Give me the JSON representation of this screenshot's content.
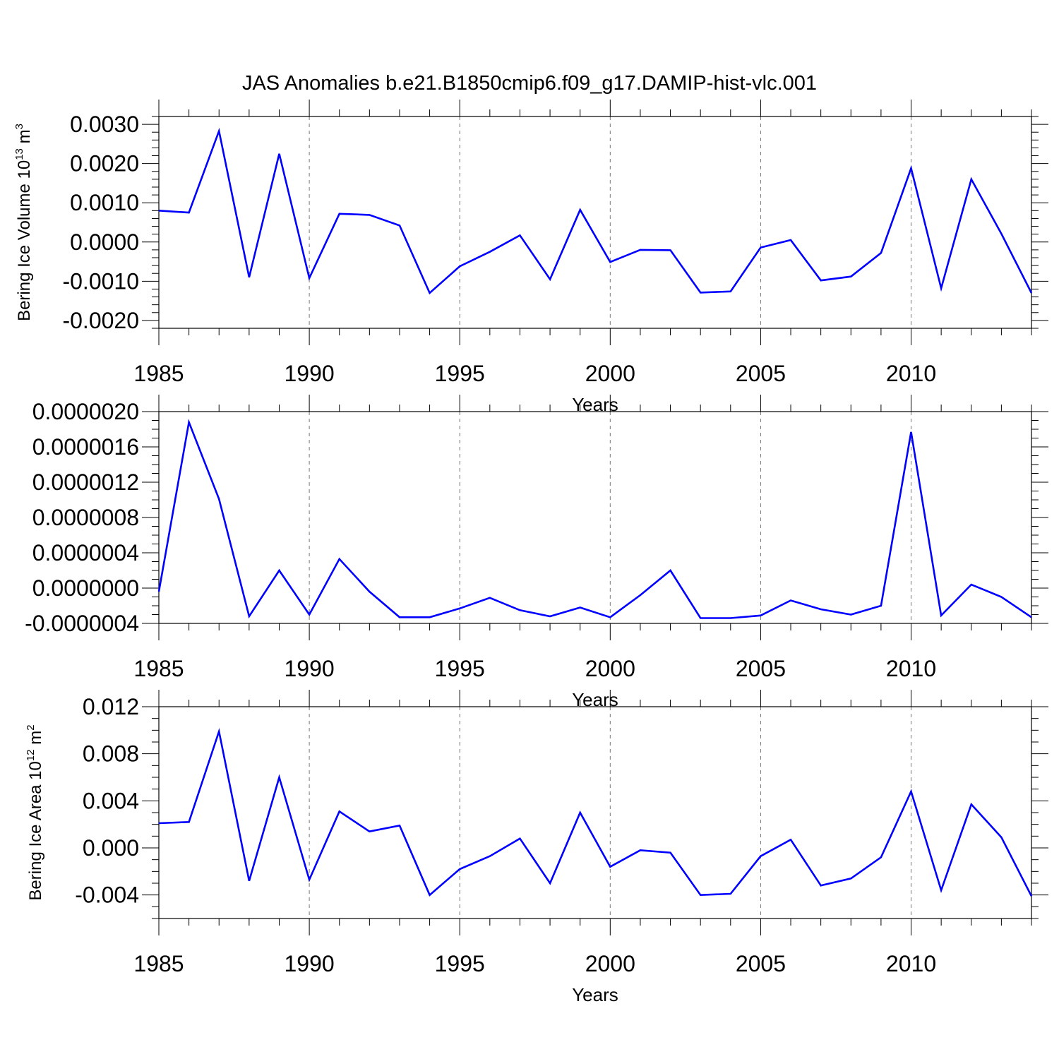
{
  "title": "JAS Anomalies b.e21.B1850cmip6.f09_g17.DAMIP-hist-vlc.001",
  "colors": {
    "line": "#0000ff",
    "axis": "#000000",
    "grid": "#777777"
  },
  "chart_data": [
    {
      "type": "line",
      "title": "",
      "xlabel": "Years",
      "ylabel": {
        "main": "Bering Ice Volume 10",
        "sup": "13",
        "mid": " m",
        "sup2": "3"
      },
      "xlim": [
        1985,
        2014
      ],
      "ylim": [
        -0.0022,
        0.0032
      ],
      "xticks": [
        1985,
        1990,
        1995,
        2000,
        2005,
        2010
      ],
      "xtick_labels": [
        "1985",
        "1990",
        "1995",
        "2000",
        "2005",
        "2010"
      ],
      "yticks": [
        -0.002,
        -0.001,
        0.0,
        0.001,
        0.002,
        0.003
      ],
      "ytick_labels": [
        "-0.0020",
        "-0.0010",
        "0.0000",
        "0.0010",
        "0.0020",
        "0.0030"
      ],
      "grid": "vertical dashed at major x ticks",
      "series": [
        {
          "name": "Bering Ice Volume",
          "x": [
            1985,
            1986,
            1987,
            1988,
            1989,
            1990,
            1991,
            1992,
            1993,
            1994,
            1995,
            1996,
            1997,
            1998,
            1999,
            2000,
            2001,
            2002,
            2003,
            2004,
            2005,
            2006,
            2007,
            2008,
            2009,
            2010,
            2011,
            2012,
            2013,
            2014
          ],
          "values": [
            0.0008,
            0.00075,
            0.00283,
            -0.0009,
            0.00225,
            -0.00092,
            0.00072,
            0.00069,
            0.00042,
            -0.0013,
            -0.00062,
            -0.00025,
            0.00017,
            -0.00095,
            0.00082,
            -0.00051,
            -0.0002,
            -0.00021,
            -0.00129,
            -0.00126,
            -0.00014,
            5e-05,
            -0.00098,
            -0.00088,
            -0.00028,
            0.00188,
            -0.00118,
            0.0016,
            0.00021,
            -0.0013
          ]
        }
      ]
    },
    {
      "type": "line",
      "title": "",
      "xlabel": "Years",
      "ylabel": null,
      "xlim": [
        1985,
        2014
      ],
      "ylim": [
        -4e-07,
        2e-06
      ],
      "xticks": [
        1985,
        1990,
        1995,
        2000,
        2005,
        2010
      ],
      "xtick_labels": [
        "1985",
        "1990",
        "1995",
        "2000",
        "2005",
        "2010"
      ],
      "yticks": [
        -4e-07,
        0.0,
        4e-07,
        8e-07,
        1.2e-06,
        1.6e-06,
        2e-06
      ],
      "ytick_labels": [
        "-0.0000004",
        "0.0000000",
        "0.0000004",
        "0.0000008",
        "0.0000012",
        "0.0000016",
        "0.0000020"
      ],
      "grid": "vertical dashed at major x ticks",
      "series": [
        {
          "name": "unlabeled",
          "x": [
            1985,
            1986,
            1987,
            1988,
            1989,
            1990,
            1991,
            1992,
            1993,
            1994,
            1995,
            1996,
            1997,
            1998,
            1999,
            2000,
            2001,
            2002,
            2003,
            2004,
            2005,
            2006,
            2007,
            2008,
            2009,
            2010,
            2011,
            2012,
            2013,
            2014
          ],
          "values": [
            -4e-08,
            1.88e-06,
            1.01e-06,
            -3.2e-07,
            2e-07,
            -3e-07,
            3.3e-07,
            -4e-08,
            -3.3e-07,
            -3.3e-07,
            -2.3e-07,
            -1.1e-07,
            -2.5e-07,
            -3.2e-07,
            -2.2e-07,
            -3.3e-07,
            -8e-08,
            2e-07,
            -3.4e-07,
            -3.4e-07,
            -3.1e-07,
            -1.4e-07,
            -2.4e-07,
            -3e-07,
            -2e-07,
            1.77e-06,
            -3.1e-07,
            4e-08,
            -1e-07,
            -3.3e-07
          ]
        }
      ]
    },
    {
      "type": "line",
      "title": "",
      "xlabel": "Years",
      "ylabel": {
        "main": "Bering Ice Area 10",
        "sup": "12",
        "mid": " m",
        "sup2": "2"
      },
      "xlim": [
        1985,
        2014
      ],
      "ylim": [
        -0.006,
        0.012
      ],
      "xticks": [
        1985,
        1990,
        1995,
        2000,
        2005,
        2010
      ],
      "xtick_labels": [
        "1985",
        "1990",
        "1995",
        "2000",
        "2005",
        "2010"
      ],
      "yticks": [
        -0.004,
        0.0,
        0.004,
        0.008,
        0.012
      ],
      "ytick_labels": [
        "-0.004",
        "0.000",
        "0.004",
        "0.008",
        "0.012"
      ],
      "grid": "vertical dashed at major x ticks",
      "series": [
        {
          "name": "Bering Ice Area",
          "x": [
            1985,
            1986,
            1987,
            1988,
            1989,
            1990,
            1991,
            1992,
            1993,
            1994,
            1995,
            1996,
            1997,
            1998,
            1999,
            2000,
            2001,
            2002,
            2003,
            2004,
            2005,
            2006,
            2007,
            2008,
            2009,
            2010,
            2011,
            2012,
            2013,
            2014
          ],
          "values": [
            0.0021,
            0.0022,
            0.0099,
            -0.0028,
            0.006,
            -0.0027,
            0.0031,
            0.0014,
            0.0019,
            -0.004,
            -0.0018,
            -0.0007,
            0.0008,
            -0.003,
            0.003,
            -0.0016,
            -0.0002,
            -0.0004,
            -0.004,
            -0.0039,
            -0.0007,
            0.0007,
            -0.0032,
            -0.0026,
            -0.0008,
            0.0048,
            -0.0036,
            0.0037,
            0.0009,
            -0.0041
          ]
        }
      ]
    }
  ]
}
